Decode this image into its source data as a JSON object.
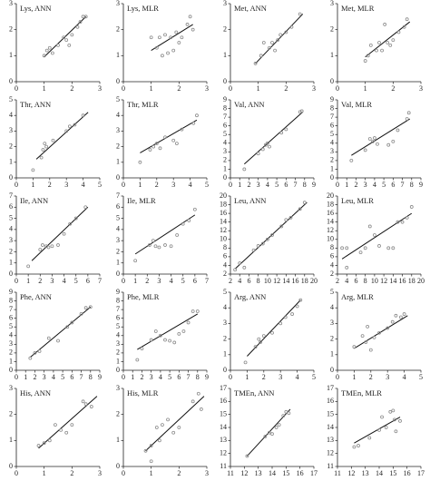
{
  "chart_data": [
    {
      "type": "scatter",
      "title": "Lys, ANN",
      "xlim": [
        0,
        3
      ],
      "xticks": [
        0,
        1,
        2,
        3
      ],
      "ylim": [
        0,
        3
      ],
      "yticks": [
        0,
        1,
        2,
        3
      ],
      "color": "#8a8a8a",
      "line_color": "#111111",
      "x": [
        1,
        1.1,
        1.2,
        1.3,
        1.5,
        1.7,
        1.8,
        1.9,
        2,
        2.2,
        2.3,
        2.4,
        2.5
      ],
      "values": [
        1,
        1.2,
        1.3,
        1.1,
        1.4,
        1.7,
        1.6,
        1.4,
        1.8,
        2.1,
        2.3,
        2.5,
        2.5
      ],
      "fit": {
        "x": [
          1,
          2.5
        ],
        "y": [
          0.95,
          2.5
        ]
      }
    },
    {
      "type": "scatter",
      "title": "Lys, MLR",
      "xlim": [
        0,
        3
      ],
      "xticks": [
        0,
        1,
        2,
        3
      ],
      "ylim": [
        0,
        3
      ],
      "yticks": [
        0,
        1,
        2,
        3
      ],
      "color": "#8a8a8a",
      "line_color": "#111111",
      "x": [
        1,
        1.2,
        1.3,
        1.4,
        1.5,
        1.6,
        1.7,
        1.8,
        1.9,
        2,
        2.1,
        2.3,
        2.4,
        2.5
      ],
      "values": [
        1.7,
        1.3,
        1.7,
        1,
        1.8,
        1.1,
        1.7,
        1.2,
        1.9,
        1.5,
        1.7,
        2.2,
        2.5,
        2
      ],
      "fit": {
        "x": [
          1,
          2.5
        ],
        "y": [
          1.2,
          2.2
        ]
      }
    },
    {
      "type": "scatter",
      "title": "Met, ANN",
      "xlim": [
        0,
        3
      ],
      "xticks": [
        0,
        1,
        2,
        3
      ],
      "ylim": [
        0,
        3
      ],
      "yticks": [
        0,
        1,
        2,
        3
      ],
      "color": "#8a8a8a",
      "line_color": "#111111",
      "x": [
        0.9,
        1.1,
        1.2,
        1.4,
        1.5,
        1.6,
        1.7,
        1.8,
        2,
        2.2,
        2.5
      ],
      "values": [
        0.7,
        1,
        1.5,
        1.3,
        1.5,
        1.2,
        1.6,
        1.8,
        1.9,
        2.1,
        2.6
      ],
      "fit": {
        "x": [
          0.9,
          2.6
        ],
        "y": [
          0.7,
          2.6
        ]
      }
    },
    {
      "type": "scatter",
      "title": "Met, MLR",
      "xlim": [
        0,
        3
      ],
      "xticks": [
        0,
        1,
        2,
        3
      ],
      "ylim": [
        0,
        3
      ],
      "yticks": [
        0,
        1,
        2,
        3
      ],
      "color": "#8a8a8a",
      "line_color": "#111111",
      "x": [
        1,
        1.1,
        1.2,
        1.4,
        1.5,
        1.6,
        1.7,
        1.8,
        1.9,
        2,
        2.2,
        2.4,
        2.5
      ],
      "values": [
        0.8,
        1,
        1.4,
        1.2,
        1.5,
        1.2,
        2.2,
        1.5,
        1.4,
        1.6,
        1.9,
        2.1,
        2.4
      ],
      "fit": {
        "x": [
          1,
          2.6
        ],
        "y": [
          0.95,
          2.3
        ]
      }
    },
    {
      "type": "scatter",
      "title": "Thr, ANN",
      "xlim": [
        0,
        5
      ],
      "xticks": [
        0,
        1,
        2,
        3,
        4,
        5
      ],
      "ylim": [
        0,
        5
      ],
      "yticks": [
        0,
        1,
        2,
        3,
        4,
        5
      ],
      "color": "#8a8a8a",
      "line_color": "#111111",
      "x": [
        1,
        1.5,
        1.6,
        1.7,
        1.8,
        2.2,
        3,
        3.2,
        3.5,
        4
      ],
      "values": [
        0.5,
        1.3,
        1.8,
        2.2,
        2,
        2.4,
        3,
        3.3,
        3.4,
        4
      ],
      "fit": {
        "x": [
          1.2,
          4.3
        ],
        "y": [
          1.2,
          4.2
        ]
      }
    },
    {
      "type": "scatter",
      "title": "Thr, MLR",
      "xlim": [
        0,
        5
      ],
      "xticks": [
        0,
        1,
        2,
        3,
        4,
        5
      ],
      "ylim": [
        0,
        5
      ],
      "yticks": [
        0,
        1,
        2,
        3,
        4,
        5
      ],
      "color": "#8a8a8a",
      "line_color": "#111111",
      "x": [
        1,
        1.6,
        1.8,
        2,
        2.2,
        2.5,
        3,
        3.2,
        3.5,
        4.2,
        4.4
      ],
      "values": [
        1,
        1.8,
        2,
        2.2,
        1.9,
        2.6,
        2.4,
        2.2,
        3.1,
        3.5,
        4
      ],
      "fit": {
        "x": [
          1,
          4.4
        ],
        "y": [
          1.6,
          3.7
        ]
      }
    },
    {
      "type": "scatter",
      "title": "Val, ANN",
      "xlim": [
        0,
        9
      ],
      "xticks": [
        0,
        1,
        2,
        3,
        4,
        5,
        6,
        7,
        8,
        9
      ],
      "ylim": [
        0,
        9
      ],
      "yticks": [
        0,
        1,
        2,
        3,
        4,
        5,
        6,
        7,
        8,
        9
      ],
      "color": "#8a8a8a",
      "line_color": "#111111",
      "x": [
        1.5,
        3,
        3.5,
        3.8,
        4,
        4.2,
        5.5,
        6,
        7.5,
        7.7
      ],
      "values": [
        1,
        2.8,
        3.3,
        3.8,
        4,
        3.6,
        5.2,
        5.6,
        7.6,
        7.7
      ],
      "fit": {
        "x": [
          1.5,
          7.8
        ],
        "y": [
          1.6,
          7.6
        ]
      }
    },
    {
      "type": "scatter",
      "title": "Val, MLR",
      "xlim": [
        0,
        9
      ],
      "xticks": [
        0,
        1,
        2,
        3,
        4,
        5,
        6,
        7,
        8,
        9
      ],
      "ylim": [
        0,
        9
      ],
      "yticks": [
        0,
        1,
        2,
        3,
        4,
        5,
        6,
        7,
        8,
        9
      ],
      "color": "#8a8a8a",
      "line_color": "#111111",
      "x": [
        1.5,
        3,
        3.5,
        3.8,
        4,
        4.3,
        5.5,
        6,
        6.5,
        7.5,
        7.7
      ],
      "values": [
        2,
        3.2,
        4.5,
        4.2,
        4.6,
        3.9,
        3.8,
        4.2,
        5.5,
        6.8,
        7.5
      ],
      "fit": {
        "x": [
          1.5,
          7.8
        ],
        "y": [
          2.6,
          6.8
        ]
      }
    },
    {
      "type": "scatter",
      "title": "Ile, ANN",
      "xlim": [
        0,
        7
      ],
      "xticks": [
        0,
        1,
        2,
        3,
        4,
        5,
        6,
        7
      ],
      "ylim": [
        0,
        7
      ],
      "yticks": [
        0,
        1,
        2,
        3,
        4,
        5,
        6,
        7
      ],
      "color": "#8a8a8a",
      "line_color": "#111111",
      "x": [
        1,
        2,
        2.2,
        2.5,
        2.7,
        3,
        3.5,
        4,
        4.5,
        5,
        5.8
      ],
      "values": [
        0.7,
        2.2,
        2.6,
        2.5,
        2.4,
        2.5,
        2.6,
        3.6,
        4.5,
        5,
        6
      ],
      "fit": {
        "x": [
          1.3,
          6
        ],
        "y": [
          1.2,
          6
        ]
      }
    },
    {
      "type": "scatter",
      "title": "Ile, MLR",
      "xlim": [
        0,
        7
      ],
      "xticks": [
        0,
        1,
        2,
        3,
        4,
        5,
        6,
        7
      ],
      "ylim": [
        0,
        7
      ],
      "yticks": [
        0,
        1,
        2,
        3,
        4,
        5,
        6,
        7
      ],
      "color": "#8a8a8a",
      "line_color": "#111111",
      "x": [
        1,
        2.2,
        2.5,
        2.7,
        3,
        3.5,
        4,
        4.5,
        5,
        5.5,
        6
      ],
      "values": [
        1.2,
        2.6,
        3,
        2.5,
        2.4,
        2.6,
        2.5,
        3.5,
        4.5,
        4.8,
        5.8
      ],
      "fit": {
        "x": [
          1,
          6
        ],
        "y": [
          1.8,
          5.3
        ]
      }
    },
    {
      "type": "scatter",
      "title": "Leu, ANN",
      "xlim": [
        2,
        20
      ],
      "xticks": [
        2,
        4,
        6,
        8,
        10,
        12,
        14,
        16,
        18,
        20
      ],
      "ylim": [
        2,
        20
      ],
      "yticks": [
        2,
        4,
        6,
        8,
        10,
        12,
        14,
        16,
        18,
        20
      ],
      "color": "#8a8a8a",
      "line_color": "#111111",
      "x": [
        3,
        4,
        5,
        7,
        8,
        9,
        10,
        11,
        13,
        14,
        15,
        17,
        18
      ],
      "values": [
        3,
        4.5,
        3.5,
        7.5,
        8.5,
        9,
        10,
        11,
        13,
        14.5,
        15,
        17,
        18.5
      ],
      "fit": {
        "x": [
          3,
          18.5
        ],
        "y": [
          3.2,
          18.5
        ]
      }
    },
    {
      "type": "scatter",
      "title": "Leu, MLR",
      "xlim": [
        2,
        20
      ],
      "xticks": [
        2,
        4,
        6,
        8,
        10,
        12,
        14,
        16,
        18,
        20
      ],
      "ylim": [
        2,
        20
      ],
      "yticks": [
        2,
        4,
        6,
        8,
        10,
        12,
        14,
        16,
        18,
        20
      ],
      "color": "#8a8a8a",
      "line_color": "#111111",
      "x": [
        3,
        4,
        4,
        7,
        8,
        9,
        10,
        11,
        13,
        14,
        15,
        16,
        17,
        18
      ],
      "values": [
        8,
        8,
        3.5,
        7,
        8,
        13,
        11,
        8.5,
        8,
        8,
        14,
        14,
        15,
        17.5
      ],
      "fit": {
        "x": [
          3,
          18
        ],
        "y": [
          5.5,
          16
        ]
      }
    },
    {
      "type": "scatter",
      "title": "Phe, ANN",
      "xlim": [
        0,
        9
      ],
      "xticks": [
        0,
        1,
        2,
        3,
        4,
        5,
        6,
        7,
        8,
        9
      ],
      "ylim": [
        0,
        9
      ],
      "yticks": [
        0,
        1,
        2,
        3,
        4,
        5,
        6,
        7,
        8,
        9
      ],
      "color": "#8a8a8a",
      "line_color": "#111111",
      "x": [
        1.5,
        2,
        2.5,
        3.5,
        4.5,
        5.5,
        6,
        7,
        7.5,
        8
      ],
      "values": [
        1.4,
        2,
        2.2,
        3.7,
        3.4,
        5,
        5.5,
        6.5,
        7.2,
        7.3
      ],
      "fit": {
        "x": [
          1.5,
          8
        ],
        "y": [
          1.5,
          7.3
        ]
      }
    },
    {
      "type": "scatter",
      "title": "Phe, MLR",
      "xlim": [
        0,
        9
      ],
      "xticks": [
        0,
        1,
        2,
        3,
        4,
        5,
        6,
        7,
        8,
        9
      ],
      "ylim": [
        0,
        9
      ],
      "yticks": [
        0,
        1,
        2,
        3,
        4,
        5,
        6,
        7,
        8,
        9
      ],
      "color": "#8a8a8a",
      "line_color": "#111111",
      "x": [
        1.5,
        2,
        3,
        3.5,
        4,
        4.5,
        5,
        5.5,
        6,
        6.5,
        7,
        7.5,
        8
      ],
      "values": [
        1.2,
        2.5,
        3.5,
        4.5,
        4,
        3.5,
        3.4,
        3.2,
        4.2,
        4.5,
        5.5,
        6.8,
        6.8
      ],
      "fit": {
        "x": [
          1.5,
          8
        ],
        "y": [
          2.4,
          6.5
        ]
      }
    },
    {
      "type": "scatter",
      "title": "Arg, ANN",
      "xlim": [
        0,
        5
      ],
      "xticks": [
        0,
        1,
        2,
        3,
        4,
        5
      ],
      "ylim": [
        0,
        5
      ],
      "yticks": [
        0,
        1,
        2,
        3,
        4,
        5
      ],
      "color": "#8a8a8a",
      "line_color": "#111111",
      "x": [
        0.9,
        1.5,
        1.7,
        1.8,
        2,
        2.5,
        3,
        3.3,
        3.7,
        4,
        4.2
      ],
      "values": [
        0.5,
        1.5,
        2,
        1.8,
        2.2,
        2.4,
        3,
        3.4,
        3.6,
        4.1,
        4.5
      ],
      "fit": {
        "x": [
          1,
          4.2
        ],
        "y": [
          0.9,
          4.5
        ]
      }
    },
    {
      "type": "scatter",
      "title": "Arg, MLR",
      "xlim": [
        0,
        5
      ],
      "xticks": [
        0,
        1,
        2,
        3,
        4,
        5
      ],
      "ylim": [
        0,
        5
      ],
      "yticks": [
        0,
        1,
        2,
        3,
        4,
        5
      ],
      "color": "#8a8a8a",
      "line_color": "#111111",
      "x": [
        1,
        1.5,
        1.7,
        1.8,
        2,
        2.2,
        2.5,
        3,
        3.3,
        3.5,
        3.8,
        4
      ],
      "values": [
        1.5,
        2.2,
        1.8,
        2.8,
        1.3,
        2.1,
        2.4,
        2.7,
        3.1,
        3.5,
        3.4,
        3.6
      ],
      "fit": {
        "x": [
          1,
          4.2
        ],
        "y": [
          1.4,
          3.5
        ]
      }
    },
    {
      "type": "scatter",
      "title": "His, ANN",
      "xlim": [
        0,
        3
      ],
      "xticks": [
        0,
        1,
        2,
        3
      ],
      "ylim": [
        0,
        3
      ],
      "yticks": [
        0,
        1,
        2,
        3
      ],
      "color": "#8a8a8a",
      "line_color": "#111111",
      "x": [
        0.8,
        1,
        1.2,
        1.4,
        1.6,
        1.8,
        2,
        2.4,
        2.5,
        2.7
      ],
      "values": [
        0.8,
        0.9,
        1,
        1.6,
        1.4,
        1.3,
        1.6,
        2.5,
        2.4,
        2.3
      ],
      "fit": {
        "x": [
          0.8,
          2.9
        ],
        "y": [
          0.7,
          2.7
        ]
      }
    },
    {
      "type": "scatter",
      "title": "His, MLR",
      "xlim": [
        0,
        3
      ],
      "xticks": [
        0,
        1,
        2,
        3
      ],
      "ylim": [
        0,
        3
      ],
      "yticks": [
        0,
        1,
        2,
        3
      ],
      "color": "#8a8a8a",
      "line_color": "#111111",
      "x": [
        0.8,
        1,
        1,
        1.2,
        1.3,
        1.4,
        1.6,
        1.8,
        2,
        2.5,
        2.7,
        2.8
      ],
      "values": [
        0.6,
        0.8,
        0.2,
        1.5,
        1,
        1.6,
        1.8,
        1.3,
        1.5,
        2.5,
        2.8,
        2.2
      ],
      "fit": {
        "x": [
          0.8,
          2.9
        ],
        "y": [
          0.6,
          2.7
        ]
      }
    },
    {
      "type": "scatter",
      "title": "TMEn, ANN",
      "xlim": [
        11,
        17
      ],
      "xticks": [
        11,
        12,
        13,
        14,
        15,
        16,
        17
      ],
      "ylim": [
        11,
        17
      ],
      "yticks": [
        11,
        12,
        13,
        14,
        15,
        16,
        17
      ],
      "color": "#8a8a8a",
      "line_color": "#111111",
      "x": [
        12.2,
        13.5,
        13.8,
        14,
        14.3,
        14.5,
        14.8,
        15,
        15.2
      ],
      "values": [
        11.8,
        13.3,
        13.6,
        13.5,
        14,
        14.2,
        14.9,
        15.2,
        15.1
      ],
      "fit": {
        "x": [
          12.2,
          15.3
        ],
        "y": [
          11.8,
          15.4
        ]
      }
    },
    {
      "type": "scatter",
      "title": "TMEn, MLR",
      "xlim": [
        11,
        17
      ],
      "xticks": [
        11,
        12,
        13,
        14,
        15,
        16,
        17
      ],
      "ylim": [
        11,
        17
      ],
      "yticks": [
        11,
        12,
        13,
        14,
        15,
        16,
        17
      ],
      "color": "#8a8a8a",
      "line_color": "#111111",
      "x": [
        12.2,
        12.5,
        13.3,
        14,
        14.2,
        14.5,
        14.8,
        15,
        15.1,
        15.2,
        15.5
      ],
      "values": [
        12.5,
        12.6,
        13.2,
        13.8,
        14.8,
        14,
        15.2,
        15.3,
        14.6,
        13.7,
        14.5
      ],
      "fit": {
        "x": [
          12.2,
          15.5
        ],
        "y": [
          12.8,
          14.8
        ]
      }
    }
  ]
}
